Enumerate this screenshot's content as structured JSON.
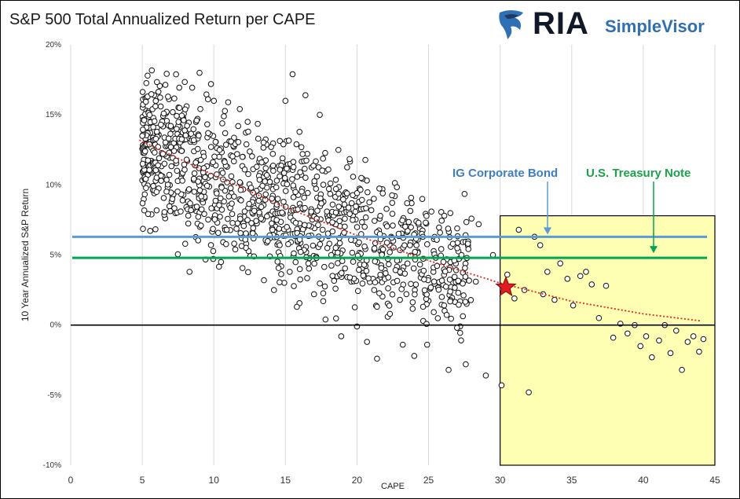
{
  "title": "S&P 500 Total Annualized Return per CAPE",
  "logo": {
    "ria": "RIA",
    "simplevisor": "SimpleVisor",
    "brand_color": "#2f6fb5",
    "dark_color": "#111827"
  },
  "colors": {
    "ig": "#5b9bd5",
    "treasury": "#00a651",
    "ig_label": "#3d7fc4",
    "treasury_label": "#1aa34a",
    "trend": "#e8241b",
    "star": "#e31b23",
    "highlight": "#ffffb3"
  },
  "chart_data": {
    "type": "scatter",
    "xlabel": "CAPE",
    "ylabel": "10 Year Annualized S&P Return",
    "xlim": [
      0,
      45
    ],
    "ylim": [
      -10,
      20
    ],
    "x_ticks": [
      "0",
      "5",
      "10",
      "15",
      "20",
      "25",
      "30",
      "35",
      "40",
      "45"
    ],
    "y_ticks": [
      "-10%",
      "-5%",
      "0%",
      "5%",
      "10%",
      "15%",
      "20%"
    ],
    "grid": "vertical",
    "reference_lines": [
      {
        "label": "IG Corporate Bond",
        "y": 6.3
      },
      {
        "label": "U.S. Treasury Note",
        "y": 4.8
      },
      {
        "y": 0
      }
    ],
    "highlight_region": {
      "x": [
        30,
        45
      ],
      "y": [
        -10,
        7.8
      ]
    },
    "current_point": {
      "x": 30.4,
      "y": 2.7
    },
    "trend": [
      [
        4.8,
        13.2
      ],
      [
        10,
        10.7
      ],
      [
        15,
        8.4
      ],
      [
        20,
        6.4
      ],
      [
        25,
        4.6
      ],
      [
        30,
        3.0
      ],
      [
        35,
        1.7
      ],
      [
        40,
        0.8
      ],
      [
        44,
        0.3
      ]
    ],
    "points": [
      [
        5.0,
        13.5
      ],
      [
        5.2,
        12.4
      ],
      [
        5.5,
        12.9
      ],
      [
        6.0,
        9.5
      ],
      [
        6.1,
        11.4
      ],
      [
        6.3,
        14.3
      ],
      [
        6.5,
        15.1
      ],
      [
        6.8,
        16.3
      ],
      [
        7.0,
        12.7
      ],
      [
        7.1,
        9.0
      ],
      [
        7.4,
        14.0
      ],
      [
        7.6,
        15.5
      ],
      [
        7.8,
        10.3
      ],
      [
        8.0,
        5.8
      ],
      [
        8.1,
        11.8
      ],
      [
        8.3,
        3.8
      ],
      [
        8.4,
        8.2
      ],
      [
        8.6,
        13.2
      ],
      [
        8.8,
        14.6
      ],
      [
        9.0,
        18.0
      ],
      [
        9.1,
        7.1
      ],
      [
        9.3,
        11.2
      ],
      [
        9.6,
        13.7
      ],
      [
        9.8,
        17.2
      ],
      [
        10.0,
        16.0
      ],
      [
        10.2,
        9.4
      ],
      [
        10.4,
        12.5
      ],
      [
        10.5,
        4.5
      ],
      [
        10.7,
        14.9
      ],
      [
        10.9,
        6.8
      ],
      [
        11.0,
        15.9
      ],
      [
        11.2,
        13.1
      ],
      [
        11.3,
        10.2
      ],
      [
        11.5,
        5.4
      ],
      [
        11.7,
        14.2
      ],
      [
        11.9,
        8.9
      ],
      [
        12.0,
        12.0
      ],
      [
        12.2,
        6.1
      ],
      [
        12.4,
        13.8
      ],
      [
        12.6,
        9.8
      ],
      [
        12.8,
        4.9
      ],
      [
        13.0,
        11.3
      ],
      [
        13.1,
        13.3
      ],
      [
        13.3,
        7.6
      ],
      [
        13.5,
        3.2
      ],
      [
        13.7,
        10.7
      ],
      [
        13.9,
        6.4
      ],
      [
        14.0,
        12.7
      ],
      [
        14.2,
        2.5
      ],
      [
        14.4,
        8.6
      ],
      [
        14.6,
        5.7
      ],
      [
        14.8,
        11.9
      ],
      [
        15.0,
        16.0
      ],
      [
        15.1,
        7.0
      ],
      [
        15.3,
        3.8
      ],
      [
        15.5,
        17.9
      ],
      [
        15.7,
        9.5
      ],
      [
        15.8,
        1.3
      ],
      [
        16.0,
        6.1
      ],
      [
        16.2,
        12.2
      ],
      [
        16.4,
        16.4
      ],
      [
        16.6,
        4.4
      ],
      [
        16.8,
        8.1
      ],
      [
        17.0,
        2.2
      ],
      [
        17.2,
        10.6
      ],
      [
        17.4,
        15.0
      ],
      [
        17.6,
        6.8
      ],
      [
        17.8,
        0.4
      ],
      [
        18.0,
        11.1
      ],
      [
        18.2,
        5.0
      ],
      [
        18.3,
        8.6
      ],
      [
        18.5,
        2.6
      ],
      [
        18.7,
        12.5
      ],
      [
        18.9,
        -0.8
      ],
      [
        19.1,
        6.6
      ],
      [
        19.3,
        9.4
      ],
      [
        19.5,
        3.4
      ],
      [
        19.7,
        7.5
      ],
      [
        20.0,
        -0.1
      ],
      [
        20.3,
        10.5
      ],
      [
        20.5,
        4.3
      ],
      [
        20.7,
        -1.2
      ],
      [
        21.0,
        8.2
      ],
      [
        21.2,
        2.5
      ],
      [
        21.4,
        -2.4
      ],
      [
        21.6,
        6.5
      ],
      [
        21.8,
        9.4
      ],
      [
        22.0,
        3.7
      ],
      [
        22.3,
        0.8
      ],
      [
        22.5,
        7.1
      ],
      [
        22.8,
        4.6
      ],
      [
        23.0,
        1.8
      ],
      [
        23.2,
        -1.4
      ],
      [
        23.5,
        8.7
      ],
      [
        23.7,
        5.7
      ],
      [
        24.0,
        -2.2
      ],
      [
        24.3,
        7.3
      ],
      [
        24.6,
        6.3
      ],
      [
        24.9,
        -1.4
      ],
      [
        25.2,
        8.1
      ],
      [
        25.5,
        4.8
      ],
      [
        25.8,
        6.6
      ],
      [
        26.1,
        7.8
      ],
      [
        26.4,
        -3.2
      ],
      [
        26.7,
        5.8
      ],
      [
        27.0,
        6.9
      ],
      [
        27.3,
        5.0
      ],
      [
        27.6,
        -2.8
      ],
      [
        28.0,
        7.6
      ],
      [
        28.3,
        3.1
      ],
      [
        28.5,
        7.2
      ],
      [
        29.0,
        -3.6
      ],
      [
        29.5,
        5.0
      ],
      [
        30.1,
        -4.3
      ],
      [
        30.5,
        3.6
      ],
      [
        31.0,
        1.9
      ],
      [
        31.3,
        6.8
      ],
      [
        31.7,
        2.5
      ],
      [
        32.0,
        -4.8
      ],
      [
        32.4,
        6.3
      ],
      [
        32.8,
        5.7
      ],
      [
        33.0,
        2.2
      ],
      [
        33.3,
        3.8
      ],
      [
        33.8,
        1.8
      ],
      [
        34.2,
        4.4
      ],
      [
        34.7,
        3.3
      ],
      [
        35.1,
        1.4
      ],
      [
        35.6,
        3.5
      ],
      [
        36.0,
        3.8
      ],
      [
        36.4,
        2.9
      ],
      [
        36.9,
        0.5
      ],
      [
        37.4,
        2.8
      ],
      [
        37.9,
        -0.9
      ],
      [
        38.4,
        0.1
      ],
      [
        38.9,
        -0.6
      ],
      [
        39.4,
        0.0
      ],
      [
        39.8,
        -1.5
      ],
      [
        40.2,
        -0.8
      ],
      [
        40.6,
        -2.3
      ],
      [
        41.1,
        -1.1
      ],
      [
        41.5,
        0.0
      ],
      [
        41.9,
        -2.0
      ],
      [
        42.3,
        -0.4
      ],
      [
        42.7,
        -3.2
      ],
      [
        43.1,
        -1.2
      ],
      [
        43.5,
        -0.8
      ],
      [
        43.9,
        -1.9
      ],
      [
        44.2,
        -1.0
      ]
    ]
  }
}
